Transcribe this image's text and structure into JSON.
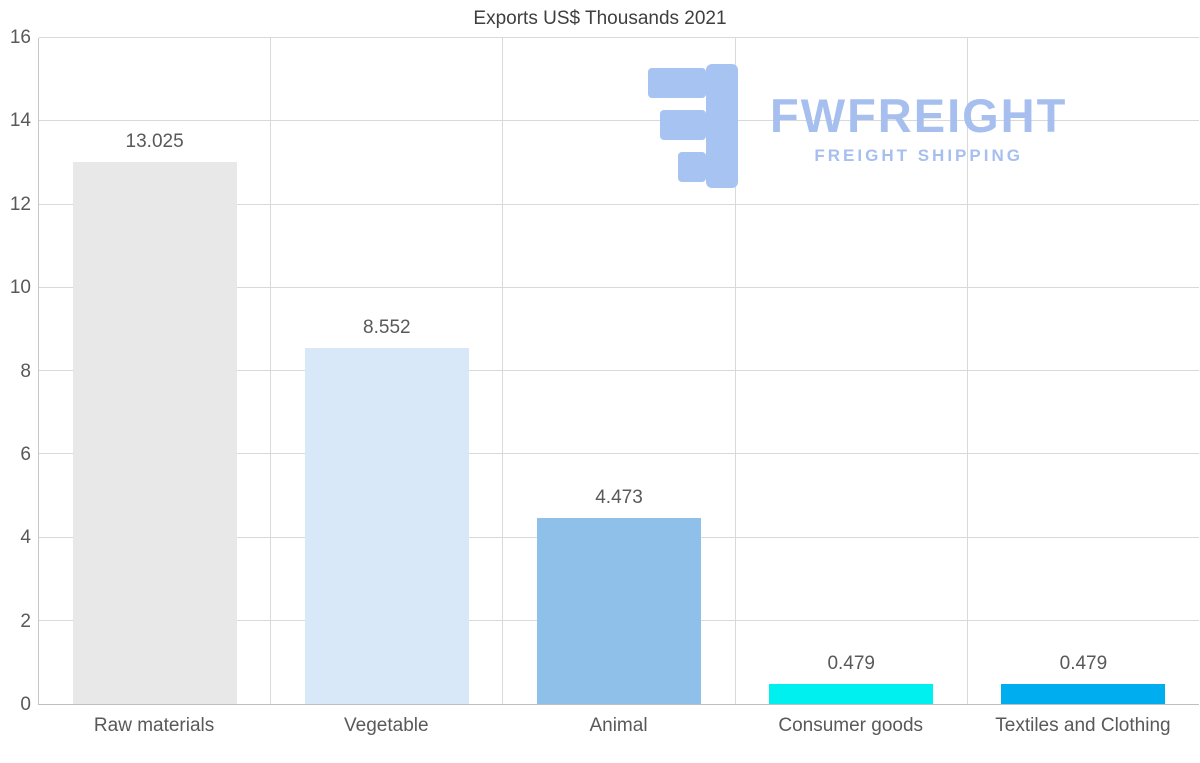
{
  "title": "Exports US$ Thousands 2021",
  "watermark": {
    "brand": "FWFREIGHT",
    "tagline": "FREIGHT SHIPPING",
    "color": "#a6bfef"
  },
  "chart_data": {
    "type": "bar",
    "title": "Exports US$ Thousands 2021",
    "categories": [
      "Raw materials",
      "Vegetable",
      "Animal",
      "Consumer goods",
      "Textiles and Clothing"
    ],
    "values": [
      13.025,
      8.552,
      4.473,
      0.479,
      0.479
    ],
    "value_labels": [
      "13.025",
      "8.552",
      "4.473",
      "0.479",
      "0.479"
    ],
    "bar_colors": [
      "#e8e8e8",
      "#d8e8f8",
      "#8fc0e9",
      "#00efef",
      "#00aeef"
    ],
    "xlabel": "",
    "ylabel": "",
    "ylim": [
      0,
      16
    ],
    "yticks": [
      0,
      2,
      4,
      6,
      8,
      10,
      12,
      14,
      16
    ],
    "grid": "horizontal gridlines plus vertical category separators",
    "legend": "none",
    "gridline_color": "#d9d9d9",
    "text_color": "#595959"
  }
}
